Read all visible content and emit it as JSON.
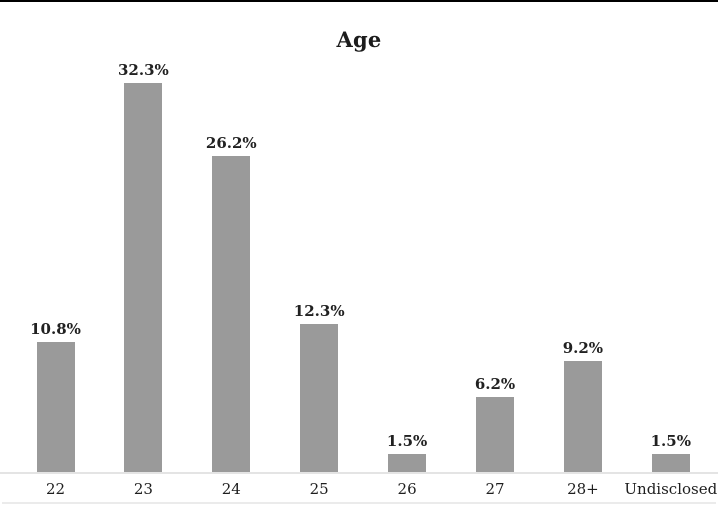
{
  "page": {
    "background": "#ffffff",
    "top_border_color": "#000000"
  },
  "chart_data": {
    "type": "bar",
    "title": "Age",
    "categories": [
      "22",
      "23",
      "24",
      "25",
      "26",
      "27",
      "28+",
      "Undisclosed"
    ],
    "values": [
      10.8,
      32.3,
      26.2,
      12.3,
      1.5,
      6.2,
      9.2,
      1.5
    ],
    "value_labels": [
      "10.8%",
      "32.3%",
      "26.2%",
      "12.3%",
      "1.5%",
      "6.2%",
      "9.2%",
      "1.5%"
    ],
    "xlabel": "",
    "ylabel": "",
    "ylim": [
      0,
      35
    ],
    "grid": false,
    "legend": "none",
    "y_axis_visible": false,
    "bar_color": "#9a9a9a",
    "value_label_color": "#212121",
    "tick_label_color": "#1e1e1e",
    "axis_line_color": "#e4e4e4"
  }
}
